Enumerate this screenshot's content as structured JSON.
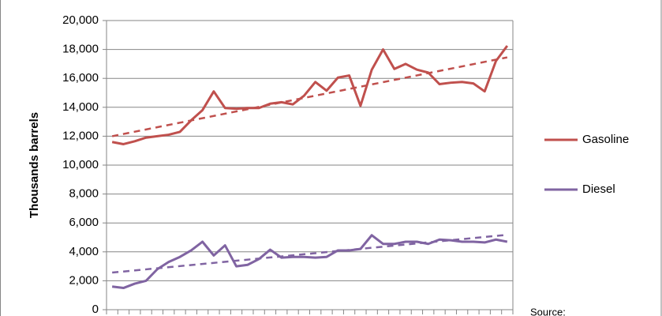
{
  "chart_data": {
    "type": "line",
    "ylabel": "Thousands barrels",
    "annotation": "Source:",
    "categories": [
      null,
      null,
      null,
      null,
      null,
      null,
      null,
      null,
      null,
      null,
      null,
      null,
      null,
      null,
      null,
      null,
      null,
      null,
      null,
      null,
      null,
      null,
      null,
      null,
      null,
      null,
      null,
      null,
      null,
      null,
      null,
      null,
      null,
      null,
      null,
      null
    ],
    "series": [
      {
        "name": "Gasoline",
        "color": "#c0504d",
        "values": [
          11600,
          11450,
          11650,
          11900,
          12000,
          12100,
          12300,
          13100,
          13800,
          15100,
          13950,
          13900,
          13950,
          13950,
          14250,
          14350,
          14200,
          14800,
          15750,
          15150,
          16050,
          16200,
          14100,
          16600,
          18000,
          16650,
          17000,
          16600,
          16400,
          15600,
          15700,
          15750,
          15650,
          15100,
          17200,
          18250
        ]
      },
      {
        "name": "Diesel",
        "color": "#8064a2",
        "values": [
          1600,
          1500,
          1800,
          2000,
          2800,
          3300,
          3650,
          4100,
          4700,
          3750,
          4450,
          3000,
          3100,
          3500,
          4150,
          3600,
          3650,
          3650,
          3600,
          3650,
          4100,
          4100,
          4200,
          5150,
          4550,
          4550,
          4700,
          4700,
          4550,
          4850,
          4800,
          4700,
          4700,
          4650,
          4850,
          4700
        ]
      }
    ],
    "trendline": true,
    "ylim": [
      0,
      20000
    ],
    "yticks": [
      0,
      {
        "value": 2000,
        "label": "2,000"
      },
      {
        "value": 4000,
        "label": "4,000"
      },
      {
        "value": 6000,
        "label": "6,000"
      },
      {
        "value": 8000,
        "label": "8,000"
      },
      {
        "value": 10000,
        "label": "10,000"
      },
      {
        "value": 12000,
        "label": "12,000"
      },
      {
        "value": 14000,
        "label": "14,000"
      },
      {
        "value": 16000,
        "label": "16,000"
      },
      {
        "value": 18000,
        "label": "18,000"
      },
      {
        "value": 20000,
        "label": "20,000"
      }
    ],
    "grid": true,
    "legend": "right"
  }
}
